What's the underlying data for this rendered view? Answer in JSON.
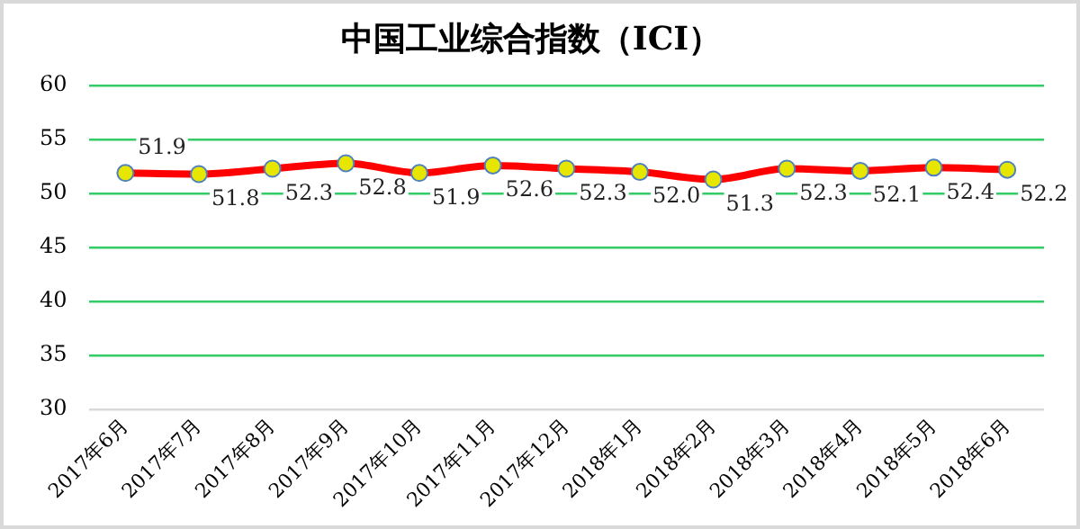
{
  "chart_data": {
    "type": "line",
    "title": "中国工业综合指数（ICI）",
    "categories": [
      "2017年6月",
      "2017年7月",
      "2017年8月",
      "2017年9月",
      "2017年10月",
      "2017年11月",
      "2017年12月",
      "2018年1月",
      "2018年2月",
      "2018年3月",
      "2018年4月",
      "2018年5月",
      "2018年6月"
    ],
    "series": [
      {
        "color": "#ff0000",
        "values": [
          51.9,
          51.8,
          52.3,
          52.8,
          51.9,
          52.6,
          52.3,
          52.0,
          51.3,
          52.3,
          52.1,
          52.4,
          52.2
        ]
      }
    ],
    "value_labels": [
      "51.9",
      "51.8",
      "52.3",
      "52.8",
      "51.9",
      "52.6",
      "52.3",
      "52.0",
      "51.3",
      "52.3",
      "52.1",
      "52.4",
      "52.2"
    ],
    "ylim": [
      30,
      60
    ],
    "yticks": [
      30,
      35,
      40,
      45,
      50,
      55,
      60
    ],
    "grid": "y",
    "legend": false,
    "marker": "circle"
  }
}
